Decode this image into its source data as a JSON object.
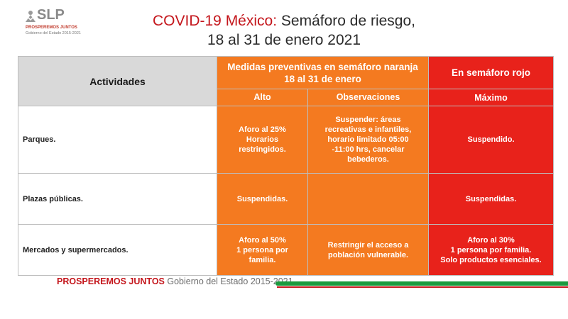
{
  "logo": {
    "text": "SLP",
    "tagline": "PROSPEREMOS JUNTOS",
    "sub": "Gobierno del Estado 2015-2021"
  },
  "title": {
    "highlight": "COVID-19 México:",
    "rest": "Semáforo de riesgo,",
    "line2": "18 al 31 de enero 2021"
  },
  "table": {
    "header_activities": "Actividades",
    "header_orange": "Medidas preventivas en semáforo naranja 18 al 31 de enero",
    "header_red": "En semáforo rojo",
    "sub_alto": "Alto",
    "sub_obs": "Observaciones",
    "sub_max": "Máximo",
    "rows": [
      {
        "activity": "Parques.",
        "alto": "Aforo al 25%\nHorarios\nrestringidos.",
        "obs": "Suspender: áreas\nrecreativas e infantiles,\nhorario limitado 05:00\n-11:00 hrs, cancelar\nbebederos.",
        "max": "Suspendido."
      },
      {
        "activity": "Plazas públicas.",
        "alto": "Suspendidas.",
        "obs": "",
        "max": "Suspendidas."
      },
      {
        "activity": "Mercados y supermercados.",
        "alto": "Aforo al 50%\n1 persona por\nfamilia.",
        "obs": "Restringir el acceso a\npoblación vulnerable.",
        "max": "Aforo al 30%\n1 persona por familia.\nSolo productos esenciales."
      }
    ]
  },
  "footer": {
    "tagline": "PROSPEREMOS JUNTOS",
    "government": "Gobierno del Estado 2015-2021"
  },
  "colors": {
    "orange": "#f47a20",
    "red": "#e8221b",
    "brand_red": "#c4161c",
    "brand_green": "#1b9a3e"
  }
}
